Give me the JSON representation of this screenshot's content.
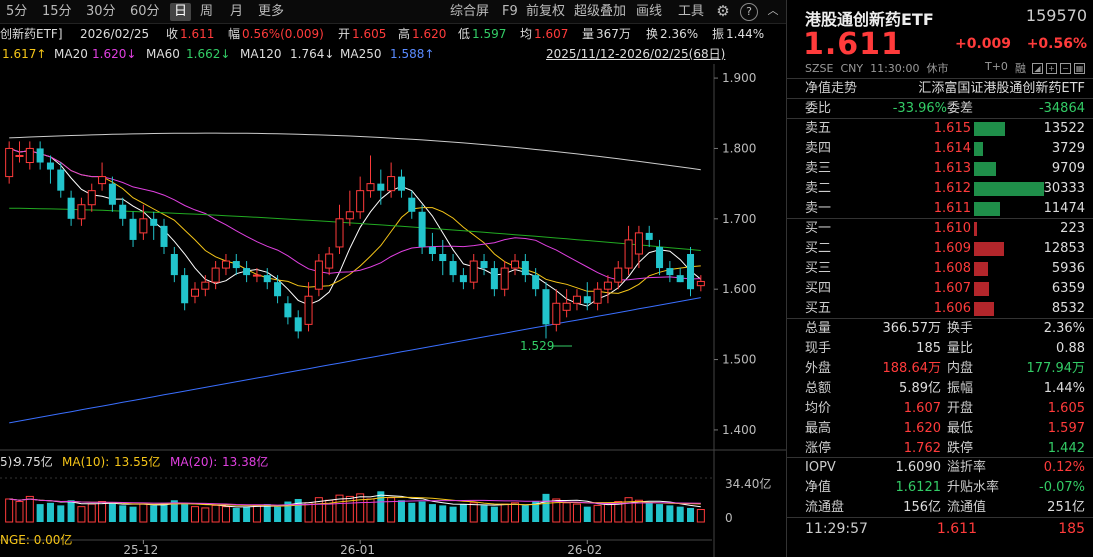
{
  "toolbar": {
    "periods": [
      "5分",
      "15分",
      "30分",
      "60分",
      "日",
      "周",
      "月",
      "更多"
    ],
    "active_period": "日",
    "tools": [
      "综合屏",
      "F9",
      "前复权",
      "超级叠加",
      "画线",
      "工具"
    ],
    "icons": [
      "gear-icon",
      "question-icon",
      "chevron-up-icon"
    ]
  },
  "legend": {
    "name": "创新药ETF]",
    "date": "2026/02/25",
    "close_label": "收",
    "close": "1.611",
    "amp_label": "幅",
    "amp": "0.56%(0.009)",
    "open_label": "开",
    "open": "1.605",
    "high_label": "高",
    "high": "1.620",
    "low_label": "低",
    "low": "1.597",
    "avg_label": "均",
    "avg": "1.607",
    "vol_label": "量",
    "vol": "367万",
    "turn_label": "换",
    "turn": "2.36%",
    "swing_label": "振",
    "swing": "1.44%"
  },
  "ma": {
    "ma10": "1.617↑",
    "ma20_label": "MA20",
    "ma20": "1.620↓",
    "ma60_label": "MA60",
    "ma60": "1.662↓",
    "ma120_label": "MA120",
    "ma120": "1.764↓",
    "ma250_label": "MA250",
    "ma250": "1.588↑",
    "range": "2025/11/12-2026/02/25(68日)"
  },
  "colors": {
    "up": "#ff3b3b",
    "down": "#22c4cc",
    "ma5": "#ffffff",
    "ma10": "#f5c518",
    "ma20": "#e040e0",
    "ma60": "#22aa22",
    "ma120": "#cccccc",
    "ma250": "#3a6fff"
  },
  "chart_data": {
    "type": "candlestick",
    "y_ticks": [
      "1.900",
      "1.800",
      "1.700",
      "1.600",
      "1.500",
      "1.400"
    ],
    "ylim": [
      1.38,
      1.92
    ],
    "x_ticks": [
      "25-12",
      "26-01",
      "26-02"
    ],
    "low_annotation": "1.529",
    "candles": [
      {
        "o": 1.76,
        "c": 1.8,
        "h": 1.81,
        "l": 1.75
      },
      {
        "o": 1.79,
        "c": 1.79,
        "h": 1.81,
        "l": 1.78
      },
      {
        "o": 1.78,
        "c": 1.8,
        "h": 1.81,
        "l": 1.77
      },
      {
        "o": 1.8,
        "c": 1.78,
        "h": 1.81,
        "l": 1.77
      },
      {
        "o": 1.78,
        "c": 1.77,
        "h": 1.79,
        "l": 1.75
      },
      {
        "o": 1.77,
        "c": 1.74,
        "h": 1.78,
        "l": 1.73
      },
      {
        "o": 1.73,
        "c": 1.7,
        "h": 1.74,
        "l": 1.69
      },
      {
        "o": 1.7,
        "c": 1.72,
        "h": 1.73,
        "l": 1.69
      },
      {
        "o": 1.72,
        "c": 1.74,
        "h": 1.75,
        "l": 1.71
      },
      {
        "o": 1.75,
        "c": 1.76,
        "h": 1.78,
        "l": 1.74
      },
      {
        "o": 1.75,
        "c": 1.72,
        "h": 1.76,
        "l": 1.71
      },
      {
        "o": 1.72,
        "c": 1.7,
        "h": 1.73,
        "l": 1.69
      },
      {
        "o": 1.7,
        "c": 1.67,
        "h": 1.71,
        "l": 1.66
      },
      {
        "o": 1.68,
        "c": 1.7,
        "h": 1.72,
        "l": 1.67
      },
      {
        "o": 1.7,
        "c": 1.69,
        "h": 1.71,
        "l": 1.67
      },
      {
        "o": 1.69,
        "c": 1.66,
        "h": 1.7,
        "l": 1.65
      },
      {
        "o": 1.65,
        "c": 1.62,
        "h": 1.66,
        "l": 1.61
      },
      {
        "o": 1.62,
        "c": 1.58,
        "h": 1.63,
        "l": 1.57
      },
      {
        "o": 1.59,
        "c": 1.6,
        "h": 1.61,
        "l": 1.58
      },
      {
        "o": 1.6,
        "c": 1.61,
        "h": 1.62,
        "l": 1.59
      },
      {
        "o": 1.61,
        "c": 1.63,
        "h": 1.64,
        "l": 1.6
      },
      {
        "o": 1.63,
        "c": 1.64,
        "h": 1.65,
        "l": 1.62
      },
      {
        "o": 1.64,
        "c": 1.63,
        "h": 1.65,
        "l": 1.62
      },
      {
        "o": 1.63,
        "c": 1.62,
        "h": 1.64,
        "l": 1.61
      },
      {
        "o": 1.62,
        "c": 1.62,
        "h": 1.63,
        "l": 1.61
      },
      {
        "o": 1.62,
        "c": 1.61,
        "h": 1.63,
        "l": 1.6
      },
      {
        "o": 1.61,
        "c": 1.59,
        "h": 1.62,
        "l": 1.58
      },
      {
        "o": 1.58,
        "c": 1.56,
        "h": 1.59,
        "l": 1.55
      },
      {
        "o": 1.56,
        "c": 1.54,
        "h": 1.57,
        "l": 1.53
      },
      {
        "o": 1.55,
        "c": 1.59,
        "h": 1.61,
        "l": 1.54
      },
      {
        "o": 1.6,
        "c": 1.64,
        "h": 1.65,
        "l": 1.59
      },
      {
        "o": 1.63,
        "c": 1.65,
        "h": 1.66,
        "l": 1.62
      },
      {
        "o": 1.66,
        "c": 1.7,
        "h": 1.72,
        "l": 1.65
      },
      {
        "o": 1.7,
        "c": 1.71,
        "h": 1.74,
        "l": 1.69
      },
      {
        "o": 1.71,
        "c": 1.74,
        "h": 1.76,
        "l": 1.7
      },
      {
        "o": 1.74,
        "c": 1.75,
        "h": 1.79,
        "l": 1.73
      },
      {
        "o": 1.75,
        "c": 1.74,
        "h": 1.77,
        "l": 1.72
      },
      {
        "o": 1.74,
        "c": 1.76,
        "h": 1.78,
        "l": 1.73
      },
      {
        "o": 1.76,
        "c": 1.74,
        "h": 1.77,
        "l": 1.73
      },
      {
        "o": 1.73,
        "c": 1.71,
        "h": 1.74,
        "l": 1.7
      },
      {
        "o": 1.71,
        "c": 1.66,
        "h": 1.72,
        "l": 1.65
      },
      {
        "o": 1.66,
        "c": 1.65,
        "h": 1.68,
        "l": 1.64
      },
      {
        "o": 1.65,
        "c": 1.64,
        "h": 1.67,
        "l": 1.62
      },
      {
        "o": 1.64,
        "c": 1.62,
        "h": 1.65,
        "l": 1.61
      },
      {
        "o": 1.62,
        "c": 1.61,
        "h": 1.63,
        "l": 1.6
      },
      {
        "o": 1.61,
        "c": 1.64,
        "h": 1.65,
        "l": 1.6
      },
      {
        "o": 1.64,
        "c": 1.63,
        "h": 1.65,
        "l": 1.62
      },
      {
        "o": 1.63,
        "c": 1.6,
        "h": 1.64,
        "l": 1.59
      },
      {
        "o": 1.6,
        "c": 1.63,
        "h": 1.64,
        "l": 1.59
      },
      {
        "o": 1.63,
        "c": 1.64,
        "h": 1.65,
        "l": 1.62
      },
      {
        "o": 1.64,
        "c": 1.62,
        "h": 1.65,
        "l": 1.61
      },
      {
        "o": 1.62,
        "c": 1.6,
        "h": 1.63,
        "l": 1.59
      },
      {
        "o": 1.6,
        "c": 1.55,
        "h": 1.61,
        "l": 1.53
      },
      {
        "o": 1.55,
        "c": 1.58,
        "h": 1.6,
        "l": 1.54
      },
      {
        "o": 1.57,
        "c": 1.58,
        "h": 1.6,
        "l": 1.56
      },
      {
        "o": 1.58,
        "c": 1.59,
        "h": 1.6,
        "l": 1.57
      },
      {
        "o": 1.59,
        "c": 1.58,
        "h": 1.61,
        "l": 1.57
      },
      {
        "o": 1.58,
        "c": 1.6,
        "h": 1.61,
        "l": 1.57
      },
      {
        "o": 1.6,
        "c": 1.61,
        "h": 1.62,
        "l": 1.58
      },
      {
        "o": 1.61,
        "c": 1.63,
        "h": 1.64,
        "l": 1.6
      },
      {
        "o": 1.63,
        "c": 1.67,
        "h": 1.69,
        "l": 1.62
      },
      {
        "o": 1.65,
        "c": 1.68,
        "h": 1.69,
        "l": 1.63
      },
      {
        "o": 1.68,
        "c": 1.67,
        "h": 1.69,
        "l": 1.66
      },
      {
        "o": 1.66,
        "c": 1.63,
        "h": 1.67,
        "l": 1.62
      },
      {
        "o": 1.63,
        "c": 1.62,
        "h": 1.64,
        "l": 1.61
      },
      {
        "o": 1.62,
        "c": 1.61,
        "h": 1.63,
        "l": 1.61
      },
      {
        "o": 1.65,
        "c": 1.6,
        "h": 1.66,
        "l": 1.59
      },
      {
        "o": 1.605,
        "c": 1.611,
        "h": 1.62,
        "l": 1.597
      }
    ],
    "volume": {
      "label_prefix": "5):",
      "vol_value": "9.75亿",
      "ma10_label": "MA(10):",
      "ma10": "13.55亿",
      "ma20_label": "MA(20):",
      "ma20": "13.38亿",
      "y_top": "34.40亿",
      "y_zero": "0",
      "bottom_text": "NGE: 0.00亿",
      "ylim": [
        0,
        34.4
      ],
      "values": [
        18,
        16,
        20,
        14,
        15,
        13,
        17,
        12,
        14,
        16,
        15,
        13,
        12,
        14,
        13,
        15,
        17,
        14,
        12,
        11,
        13,
        12,
        11,
        12,
        13,
        14,
        12,
        16,
        18,
        15,
        19,
        17,
        21,
        20,
        22,
        18,
        24,
        19,
        17,
        15,
        16,
        14,
        13,
        12,
        14,
        15,
        13,
        12,
        14,
        15,
        13,
        16,
        22,
        18,
        15,
        14,
        12,
        13,
        14,
        16,
        19,
        17,
        15,
        14,
        13,
        12,
        11,
        9.75
      ]
    }
  },
  "panel": {
    "name": "港股通创新药ETF",
    "code": "159570",
    "price": "1.611",
    "change": "+0.009",
    "pct": "+0.56%",
    "meta_market": "SZSE",
    "meta_ccy": "CNY",
    "meta_time": "11:30:00",
    "meta_status": "休市",
    "meta_t0": "T+0",
    "meta_margin": "融",
    "nav_label": "净值走势",
    "fund_name": "汇添富国证港股通创新药ETF",
    "weibi_label": "委比",
    "weibi": "-33.96%",
    "weicha_label": "委差",
    "weicha": "-34864",
    "sell": [
      {
        "label": "卖五",
        "price": "1.615",
        "vol": "13522",
        "bar": 13522
      },
      {
        "label": "卖四",
        "price": "1.614",
        "vol": "3729",
        "bar": 3729
      },
      {
        "label": "卖三",
        "price": "1.613",
        "vol": "9709",
        "bar": 9709
      },
      {
        "label": "卖二",
        "price": "1.612",
        "vol": "30333",
        "bar": 30333
      },
      {
        "label": "卖一",
        "price": "1.611",
        "vol": "11474",
        "bar": 11474
      }
    ],
    "buy": [
      {
        "label": "买一",
        "price": "1.610",
        "vol": "223",
        "bar": 223
      },
      {
        "label": "买二",
        "price": "1.609",
        "vol": "12853",
        "bar": 12853
      },
      {
        "label": "买三",
        "price": "1.608",
        "vol": "5936",
        "bar": 5936
      },
      {
        "label": "买四",
        "price": "1.607",
        "vol": "6359",
        "bar": 6359
      },
      {
        "label": "买五",
        "price": "1.606",
        "vol": "8532",
        "bar": 8532
      }
    ],
    "stats": [
      [
        {
          "l": "总量",
          "v": "366.57万",
          "c": "white"
        },
        {
          "l": "换手",
          "v": "2.36%",
          "c": "white"
        }
      ],
      [
        {
          "l": "现手",
          "v": "185",
          "c": "white"
        },
        {
          "l": "量比",
          "v": "0.88",
          "c": "white"
        }
      ],
      [
        {
          "l": "外盘",
          "v": "188.64万",
          "c": "red"
        },
        {
          "l": "内盘",
          "v": "177.94万",
          "c": "green"
        }
      ],
      [
        {
          "l": "总额",
          "v": "5.89亿",
          "c": "white"
        },
        {
          "l": "振幅",
          "v": "1.44%",
          "c": "white"
        }
      ],
      [
        {
          "l": "均价",
          "v": "1.607",
          "c": "red"
        },
        {
          "l": "开盘",
          "v": "1.605",
          "c": "red"
        }
      ],
      [
        {
          "l": "最高",
          "v": "1.620",
          "c": "red"
        },
        {
          "l": "最低",
          "v": "1.597",
          "c": "red"
        }
      ],
      [
        {
          "l": "涨停",
          "v": "1.762",
          "c": "red"
        },
        {
          "l": "跌停",
          "v": "1.442",
          "c": "green"
        }
      ]
    ],
    "stats2": [
      [
        {
          "l": "IOPV",
          "v": "1.6090",
          "c": "white"
        },
        {
          "l": "溢折率",
          "v": "0.12%",
          "c": "red"
        }
      ],
      [
        {
          "l": "净值",
          "v": "1.6121",
          "c": "green"
        },
        {
          "l": "升贴水率",
          "v": "-0.07%",
          "c": "green"
        }
      ],
      [
        {
          "l": "流通盘",
          "v": "156亿",
          "c": "white"
        },
        {
          "l": "流通值",
          "v": "251亿",
          "c": "white"
        }
      ]
    ],
    "tick_time": "11:29:57",
    "tick_price": "1.611",
    "tick_vol": "185"
  }
}
